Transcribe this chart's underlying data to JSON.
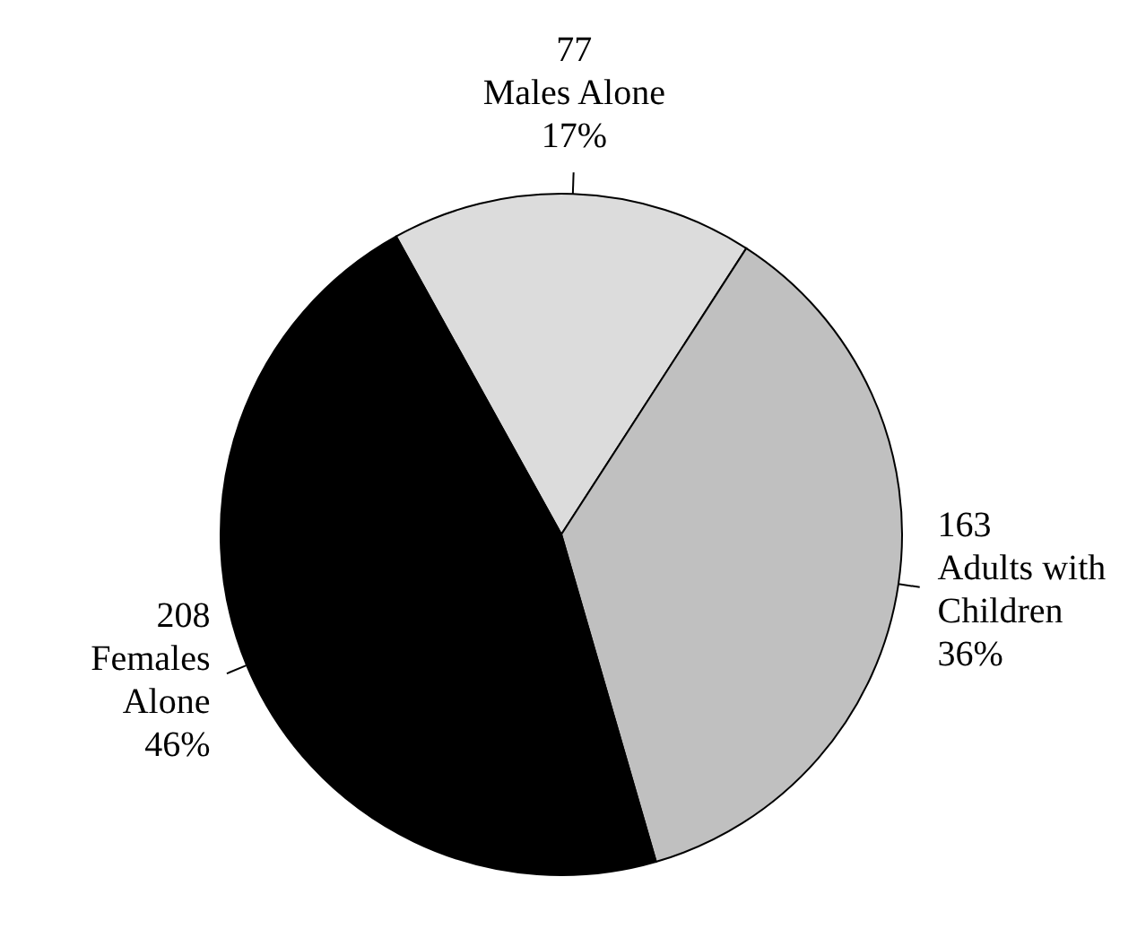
{
  "chart_data": {
    "type": "pie",
    "categories": [
      "Males Alone",
      "Adults with Children",
      "Females Alone"
    ],
    "values": [
      77,
      163,
      208
    ],
    "colors": [
      "#dcdcdc",
      "#c0c0c0",
      "#000000"
    ],
    "data_labels": true,
    "annotations": [
      "17%",
      "36%",
      "46%"
    ]
  }
}
